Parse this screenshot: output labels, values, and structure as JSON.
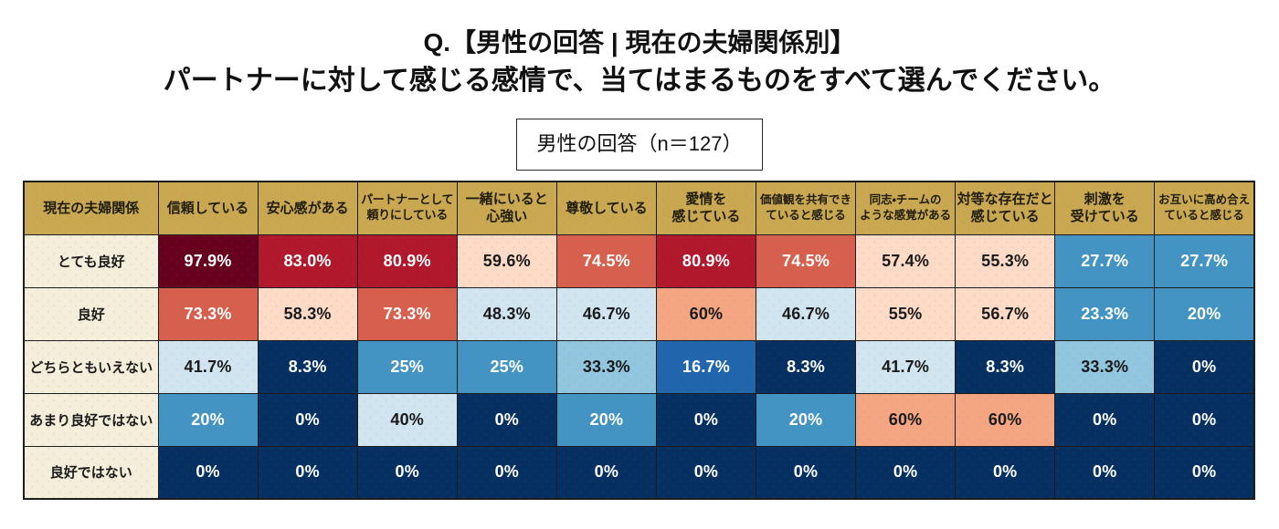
{
  "title": {
    "line1": "Q.【男性の回答 | 現在の夫婦関係別】",
    "line2": "パートナーに対して感じる感情で、当てはまるものをすべて選んでください。"
  },
  "badge": {
    "label": "男性の回答（n＝127）"
  },
  "chart_data": {
    "type": "heatmap",
    "title": "Q.【男性の回答 | 現在の夫婦関係別】パートナーに対して感じる感情で、当てはまるものをすべて選んでください。",
    "sample_label": "男性の回答（n＝127）",
    "row_header": "現在の夫婦関係",
    "columns": [
      "信頼している",
      "安心感がある",
      "パートナーとして\n頼りにしている",
      "一緒にいると\n心強い",
      "尊敬している",
      "愛情を\n感じている",
      "価値観を共有でき\nていると感じる",
      "同志・チームの\nような感覚がある",
      "対等な存在だと\n感じている",
      "刺激を\n受けている",
      "お互いに高め合え\nていると感じる"
    ],
    "small_font_columns": [
      6,
      7,
      10
    ],
    "mid_font_columns": [
      2
    ],
    "rows": [
      "とても良好",
      "良好",
      "どちらともいえない",
      "あまり良好ではない",
      "良好ではない"
    ],
    "values": [
      [
        97.9,
        83.0,
        80.9,
        59.6,
        74.5,
        80.9,
        74.5,
        57.4,
        55.3,
        27.7,
        27.7
      ],
      [
        73.3,
        58.3,
        73.3,
        48.3,
        46.7,
        60,
        46.7,
        55,
        56.7,
        23.3,
        20
      ],
      [
        41.7,
        8.3,
        25,
        25,
        33.3,
        16.7,
        8.3,
        41.7,
        8.3,
        33.3,
        0
      ],
      [
        20,
        0,
        40,
        0,
        20,
        0,
        20,
        60,
        60,
        0,
        0
      ],
      [
        0,
        0,
        0,
        0,
        0,
        0,
        0,
        0,
        0,
        0,
        0
      ]
    ],
    "labels": [
      [
        "97.9%",
        "83.0%",
        "80.9%",
        "59.6%",
        "74.5%",
        "80.9%",
        "74.5%",
        "57.4%",
        "55.3%",
        "27.7%",
        "27.7%"
      ],
      [
        "73.3%",
        "58.3%",
        "73.3%",
        "48.3%",
        "46.7%",
        "60%",
        "46.7%",
        "55%",
        "56.7%",
        "23.3%",
        "20%"
      ],
      [
        "41.7%",
        "8.3%",
        "25%",
        "25%",
        "33.3%",
        "16.7%",
        "8.3%",
        "41.7%",
        "8.3%",
        "33.3%",
        "0%"
      ],
      [
        "20%",
        "0%",
        "40%",
        "0%",
        "20%",
        "0%",
        "20%",
        "60%",
        "60%",
        "0%",
        "0%"
      ],
      [
        "0%",
        "0%",
        "0%",
        "0%",
        "0%",
        "0%",
        "0%",
        "0%",
        "0%",
        "0%",
        "0%"
      ]
    ],
    "colormap": {
      "bin_size": 10,
      "bins_low_to_high": [
        "#053061",
        "#2166ac",
        "#4393c3",
        "#92c5de",
        "#d1e5f0",
        "#fddbc7",
        "#f4a582",
        "#d6604d",
        "#b2182b",
        "#67001f"
      ],
      "dark_text": "#1a1a1a",
      "light_text": "#ffffff",
      "light_text_bins": [
        0,
        1,
        2,
        7,
        8,
        9
      ]
    },
    "header_bg": "#c9a851",
    "row_label_bg": "#f4eedb"
  }
}
